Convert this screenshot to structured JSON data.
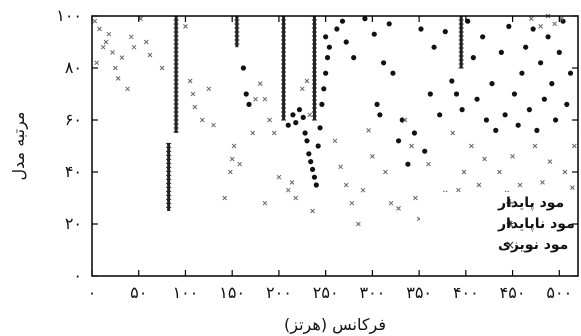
{
  "chart_data": {
    "type": "scatter",
    "xlabel": "فرکانس (هرتز)",
    "ylabel": "مرتبه مدل",
    "xlim": [
      0,
      520
    ],
    "ylim": [
      0,
      100
    ],
    "x_ticks": [
      {
        "value": 0,
        "label": "۰"
      },
      {
        "value": 50,
        "label": "۵۰"
      },
      {
        "value": 100,
        "label": "۱۰۰"
      },
      {
        "value": 150,
        "label": "۱۵۰"
      },
      {
        "value": 200,
        "label": "۲۰۰"
      },
      {
        "value": 250,
        "label": "۲۵۰"
      },
      {
        "value": 300,
        "label": "۳۰۰"
      },
      {
        "value": 350,
        "label": "۳۵۰"
      },
      {
        "value": 400,
        "label": "۴۰۰"
      },
      {
        "value": 450,
        "label": "۴۵۰"
      },
      {
        "value": 500,
        "label": "۵۰۰"
      }
    ],
    "y_ticks": [
      {
        "value": 0,
        "label": "۰"
      },
      {
        "value": 20,
        "label": "۲۰"
      },
      {
        "value": 40,
        "label": "۴۰"
      },
      {
        "value": 60,
        "label": "۶۰"
      },
      {
        "value": 80,
        "label": "۸۰"
      },
      {
        "value": 100,
        "label": "۱۰۰"
      }
    ],
    "legend": {
      "placement": "bottom-right",
      "entries": [
        {
          "symbol": "+",
          "label": "مود پایدار"
        },
        {
          "symbol": "⁕",
          "label": "مود ناپایدار"
        },
        {
          "symbol": "×",
          "label": "مود نویزی"
        }
      ]
    },
    "series": [
      {
        "symbol": "+",
        "lines": [
          {
            "x": 82,
            "y_from": 25,
            "y_to": 51
          },
          {
            "x": 90,
            "y_from": 55,
            "y_to": 100
          },
          {
            "x": 155,
            "y_from": 88,
            "y_to": 100
          },
          {
            "x": 205,
            "y_from": 60,
            "y_to": 100
          },
          {
            "x": 238,
            "y_from": 60,
            "y_to": 100
          },
          {
            "x": 395,
            "y_from": 80,
            "y_to": 100
          }
        ]
      },
      {
        "symbol": "⁕",
        "points": [
          [
            165,
            70
          ],
          [
            168,
            66
          ],
          [
            162,
            80
          ],
          [
            210,
            58
          ],
          [
            215,
            62
          ],
          [
            218,
            59
          ],
          [
            222,
            64
          ],
          [
            226,
            61
          ],
          [
            228,
            55
          ],
          [
            230,
            52
          ],
          [
            232,
            47
          ],
          [
            234,
            44
          ],
          [
            236,
            41
          ],
          [
            238,
            38
          ],
          [
            240,
            35
          ],
          [
            242,
            50
          ],
          [
            244,
            57
          ],
          [
            246,
            66
          ],
          [
            248,
            72
          ],
          [
            250,
            78
          ],
          [
            252,
            84
          ],
          [
            254,
            88
          ],
          [
            250,
            92
          ],
          [
            262,
            95
          ],
          [
            268,
            98
          ],
          [
            272,
            90
          ],
          [
            280,
            84
          ],
          [
            292,
            99
          ],
          [
            302,
            93
          ],
          [
            305,
            66
          ],
          [
            308,
            62
          ],
          [
            312,
            82
          ],
          [
            318,
            97
          ],
          [
            322,
            78
          ],
          [
            328,
            52
          ],
          [
            332,
            60
          ],
          [
            338,
            43
          ],
          [
            345,
            55
          ],
          [
            352,
            95
          ],
          [
            356,
            48
          ],
          [
            362,
            70
          ],
          [
            366,
            88
          ],
          [
            372,
            62
          ],
          [
            378,
            94
          ],
          [
            385,
            75
          ],
          [
            390,
            70
          ],
          [
            396,
            64
          ],
          [
            402,
            98
          ],
          [
            408,
            84
          ],
          [
            412,
            68
          ],
          [
            418,
            92
          ],
          [
            422,
            60
          ],
          [
            428,
            74
          ],
          [
            432,
            56
          ],
          [
            438,
            86
          ],
          [
            442,
            62
          ],
          [
            446,
            96
          ],
          [
            452,
            70
          ],
          [
            456,
            58
          ],
          [
            460,
            78
          ],
          [
            464,
            88
          ],
          [
            468,
            64
          ],
          [
            472,
            95
          ],
          [
            476,
            56
          ],
          [
            480,
            82
          ],
          [
            484,
            68
          ],
          [
            488,
            92
          ],
          [
            492,
            74
          ],
          [
            496,
            60
          ],
          [
            500,
            86
          ],
          [
            504,
            98
          ],
          [
            508,
            66
          ],
          [
            512,
            78
          ]
        ]
      },
      {
        "symbol": "×",
        "points": [
          [
            3,
            98
          ],
          [
            5,
            82
          ],
          [
            8,
            95
          ],
          [
            12,
            88
          ],
          [
            15,
            90
          ],
          [
            18,
            93
          ],
          [
            22,
            86
          ],
          [
            25,
            80
          ],
          [
            28,
            76
          ],
          [
            32,
            84
          ],
          [
            38,
            72
          ],
          [
            42,
            92
          ],
          [
            45,
            88
          ],
          [
            52,
            99
          ],
          [
            58,
            90
          ],
          [
            62,
            85
          ],
          [
            75,
            80
          ],
          [
            100,
            96
          ],
          [
            105,
            75
          ],
          [
            108,
            70
          ],
          [
            110,
            65
          ],
          [
            118,
            60
          ],
          [
            125,
            72
          ],
          [
            130,
            58
          ],
          [
            142,
            30
          ],
          [
            148,
            40
          ],
          [
            150,
            45
          ],
          [
            152,
            50
          ],
          [
            158,
            43
          ],
          [
            172,
            55
          ],
          [
            175,
            68
          ],
          [
            180,
            74
          ],
          [
            185,
            68
          ],
          [
            190,
            60
          ],
          [
            195,
            55
          ],
          [
            185,
            28
          ],
          [
            200,
            38
          ],
          [
            210,
            33
          ],
          [
            214,
            36
          ],
          [
            218,
            30
          ],
          [
            225,
            72
          ],
          [
            230,
            75
          ],
          [
            233,
            62
          ],
          [
            236,
            25
          ],
          [
            260,
            52
          ],
          [
            266,
            42
          ],
          [
            272,
            35
          ],
          [
            278,
            28
          ],
          [
            285,
            20
          ],
          [
            290,
            33
          ],
          [
            296,
            56
          ],
          [
            300,
            46
          ],
          [
            314,
            40
          ],
          [
            320,
            28
          ],
          [
            328,
            26
          ],
          [
            335,
            60
          ],
          [
            342,
            50
          ],
          [
            346,
            30
          ],
          [
            350,
            22
          ],
          [
            360,
            43
          ],
          [
            366,
            30
          ],
          [
            372,
            26
          ],
          [
            378,
            32
          ],
          [
            386,
            55
          ],
          [
            392,
            33
          ],
          [
            398,
            40
          ],
          [
            406,
            50
          ],
          [
            414,
            35
          ],
          [
            420,
            45
          ],
          [
            426,
            30
          ],
          [
            436,
            40
          ],
          [
            444,
            32
          ],
          [
            450,
            46
          ],
          [
            458,
            35
          ],
          [
            466,
            28
          ],
          [
            474,
            50
          ],
          [
            482,
            36
          ],
          [
            490,
            44
          ],
          [
            498,
            30
          ],
          [
            506,
            40
          ],
          [
            514,
            34
          ],
          [
            516,
            50
          ],
          [
            470,
            99
          ],
          [
            480,
            96
          ],
          [
            488,
            100
          ],
          [
            495,
            97
          ],
          [
            502,
            99
          ]
        ]
      }
    ]
  }
}
